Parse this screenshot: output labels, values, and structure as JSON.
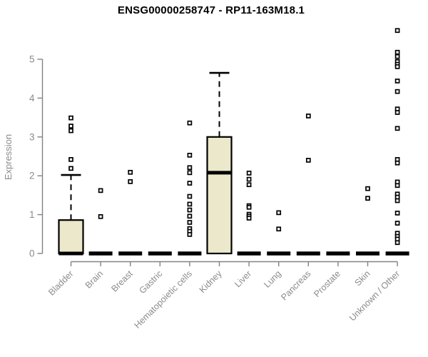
{
  "chart_data": {
    "type": "boxplot",
    "title": "ENSG00000258747 - RP11-163M18.1",
    "ylabel": "Expression",
    "xlabel": "",
    "ylim": [
      0,
      5.8
    ],
    "yticks": [
      0,
      1,
      2,
      3,
      4,
      5
    ],
    "grid": false,
    "legend": "none",
    "box_fill_color": "#ece8cb",
    "box_border_color": "#000000",
    "axis_color": "#828282",
    "tick_label_color": "#8b8b8b",
    "categories": [
      "Bladder",
      "Brain",
      "Breast",
      "Gastric",
      "Hematopoietic cells",
      "Kidney",
      "Liver",
      "Lung",
      "Pancreas",
      "Prostate",
      "Skin",
      "Unknown / Other"
    ],
    "boxes": [
      {
        "category": "Bladder",
        "q1": 0,
        "median": 0,
        "q3": 0.86,
        "whisker_low": 0,
        "whisker_high": 2.02,
        "outliers": [
          3.49,
          3.28,
          3.16,
          2.42,
          2.19
        ]
      },
      {
        "category": "Brain",
        "q1": 0,
        "median": 0,
        "q3": 0,
        "whisker_low": 0,
        "whisker_high": 0,
        "outliers": [
          1.62,
          0.95
        ]
      },
      {
        "category": "Breast",
        "q1": 0,
        "median": 0,
        "q3": 0,
        "whisker_low": 0,
        "whisker_high": 0,
        "outliers": [
          2.09,
          1.85
        ]
      },
      {
        "category": "Gastric",
        "q1": 0,
        "median": 0,
        "q3": 0,
        "whisker_low": 0,
        "whisker_high": 0,
        "outliers": []
      },
      {
        "category": "Hematopoietic cells",
        "q1": 0,
        "median": 0,
        "q3": 0,
        "whisker_low": 0,
        "whisker_high": 0,
        "outliers": [
          3.36,
          2.53,
          2.21,
          2.08,
          1.81,
          1.47,
          1.27,
          1.12,
          0.96,
          0.8,
          0.64,
          0.57,
          0.49
        ]
      },
      {
        "category": "Kidney",
        "q1": 0,
        "median": 2.08,
        "q3": 3.0,
        "whisker_low": 0,
        "whisker_high": 4.65,
        "outliers": []
      },
      {
        "category": "Liver",
        "q1": 0,
        "median": 0,
        "q3": 0,
        "whisker_low": 0,
        "whisker_high": 0,
        "outliers": [
          2.07,
          1.91,
          1.77,
          1.23,
          1.19,
          1.01,
          0.96,
          0.91
        ]
      },
      {
        "category": "Lung",
        "q1": 0,
        "median": 0,
        "q3": 0,
        "whisker_low": 0,
        "whisker_high": 0,
        "outliers": [
          1.05,
          0.63
        ]
      },
      {
        "category": "Pancreas",
        "q1": 0,
        "median": 0,
        "q3": 0,
        "whisker_low": 0,
        "whisker_high": 0,
        "outliers": [
          3.54,
          2.4
        ]
      },
      {
        "category": "Prostate",
        "q1": 0,
        "median": 0,
        "q3": 0,
        "whisker_low": 0,
        "whisker_high": 0,
        "outliers": []
      },
      {
        "category": "Skin",
        "q1": 0,
        "median": 0,
        "q3": 0,
        "whisker_low": 0,
        "whisker_high": 0,
        "outliers": [
          1.67,
          1.42
        ]
      },
      {
        "category": "Unknown / Other",
        "q1": 0,
        "median": 0,
        "q3": 0,
        "whisker_low": 0,
        "whisker_high": 0,
        "outliers": [
          5.74,
          5.18,
          5.07,
          4.94,
          4.87,
          4.81,
          4.44,
          4.17,
          3.72,
          3.63,
          3.22,
          2.42,
          2.33,
          1.84,
          1.75,
          1.53,
          1.45,
          1.36,
          1.04,
          0.78,
          0.52,
          0.44,
          0.37,
          0.28
        ]
      }
    ]
  }
}
